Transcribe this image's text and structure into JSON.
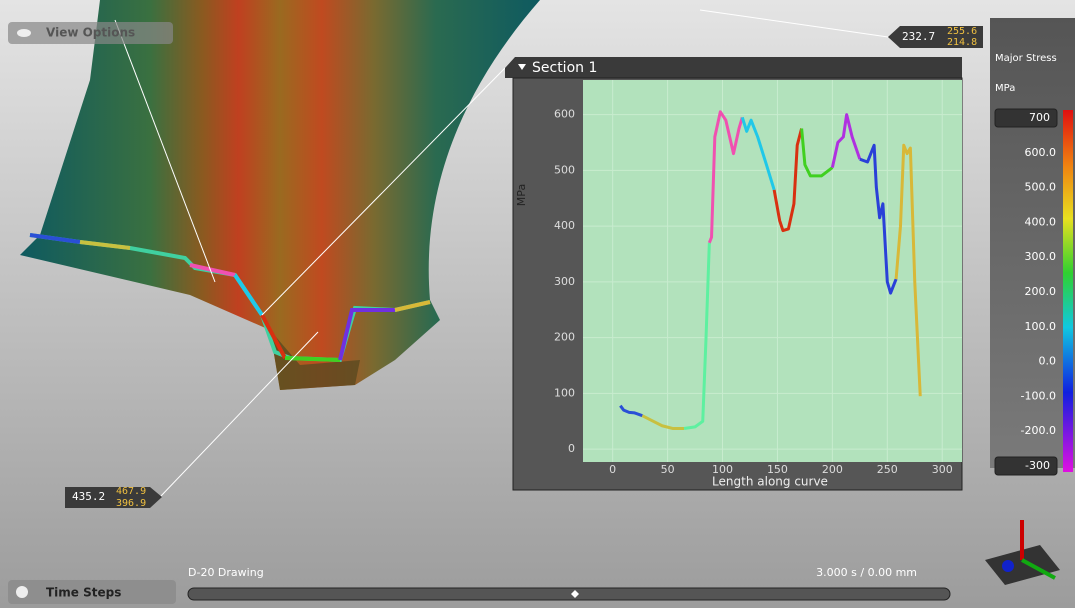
{
  "toolbar": {
    "view_options": "View Options"
  },
  "callouts": [
    {
      "value": "232.7",
      "upper": "255.6",
      "lower": "214.8"
    },
    {
      "value": "435.2",
      "upper": "467.9",
      "lower": "396.9"
    }
  ],
  "legend": {
    "title": "Major Stress",
    "unit": "MPa",
    "max": 700,
    "min": -300,
    "ticks": [
      {
        "value": 600,
        "label": "600.0"
      },
      {
        "value": 500,
        "label": "500.0"
      },
      {
        "value": 400,
        "label": "400.0"
      },
      {
        "value": 300,
        "label": "300.0"
      },
      {
        "value": 200,
        "label": "200.0"
      },
      {
        "value": 100,
        "label": "100.0"
      },
      {
        "value": 0,
        "label": "0.0"
      },
      {
        "value": -100,
        "label": "-100.0"
      },
      {
        "value": -200,
        "label": "-200.0"
      }
    ]
  },
  "time_steps": {
    "label": "Time Steps",
    "stage": "D-20 Drawing",
    "status": "3.000 s / 0.00 mm"
  },
  "chart_data": {
    "type": "line",
    "title": "Section 1",
    "x_label": "Length along curve",
    "y_label": "MPa",
    "xlim": [
      -27,
      318
    ],
    "ylim": [
      -23,
      662
    ],
    "xticks": [
      0,
      50,
      100,
      150,
      200,
      250,
      300
    ],
    "yticks": [
      0,
      100,
      200,
      300,
      400,
      500,
      600
    ],
    "grid": true,
    "series": [
      {
        "color": "#2a4fd6",
        "x": [
          7,
          10,
          15,
          20,
          27
        ],
        "values": [
          78,
          70,
          66,
          65,
          60
        ]
      },
      {
        "color": "#c8c040",
        "x": [
          27,
          35,
          45,
          55,
          65
        ],
        "values": [
          60,
          52,
          42,
          37,
          37
        ]
      },
      {
        "color": "#5ef0a0",
        "x": [
          65,
          75,
          82,
          85,
          88
        ],
        "values": [
          37,
          40,
          50,
          200,
          370
        ]
      },
      {
        "color": "#f050b0",
        "x": [
          88,
          90,
          93,
          98,
          103,
          110,
          115,
          118
        ],
        "values": [
          370,
          380,
          560,
          605,
          590,
          530,
          575,
          595
        ]
      },
      {
        "color": "#20c8e8",
        "x": [
          118,
          122,
          126,
          132,
          140,
          147
        ],
        "values": [
          595,
          570,
          590,
          560,
          510,
          465
        ]
      },
      {
        "color": "#d83010",
        "x": [
          147,
          152,
          155,
          160,
          165,
          168,
          172
        ],
        "values": [
          465,
          410,
          392,
          395,
          440,
          545,
          575
        ]
      },
      {
        "color": "#40d020",
        "x": [
          172,
          175,
          180,
          190,
          200
        ],
        "values": [
          575,
          510,
          490,
          490,
          505
        ]
      },
      {
        "color": "#b030e0",
        "x": [
          200,
          205,
          210,
          213,
          218,
          225
        ],
        "values": [
          505,
          550,
          560,
          600,
          560,
          520
        ]
      },
      {
        "color": "#2a40d8",
        "x": [
          225,
          232,
          238,
          240,
          243,
          246,
          250,
          253,
          258
        ],
        "values": [
          520,
          515,
          545,
          470,
          415,
          440,
          300,
          280,
          305
        ]
      },
      {
        "color": "#d8b838",
        "x": [
          258,
          262,
          265,
          268,
          271,
          275,
          280
        ],
        "values": [
          305,
          400,
          545,
          530,
          540,
          300,
          95
        ]
      }
    ]
  }
}
